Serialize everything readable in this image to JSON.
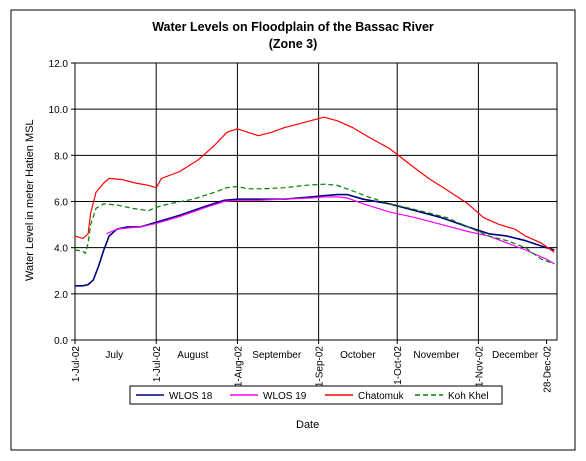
{
  "chart_data": {
    "type": "line",
    "title": "Water Levels on Floodplain of the Bassac River",
    "subtitle": "(Zone 3)",
    "ylabel": "Water Level in meter Hatien MSL",
    "xlabel": "Date",
    "ylim": [
      0,
      12
    ],
    "yticks": [
      "0.0",
      "2.0",
      "4.0",
      "6.0",
      "8.0",
      "10.0",
      "12.0"
    ],
    "grid": true,
    "legend_position": "bottom",
    "date_labels": [
      "1-Jul-02",
      "1-Jul-02",
      "1-Aug-02",
      "1-Sep-02",
      "1-Oct-02",
      "1-Nov-02",
      "28-Dec-02"
    ],
    "date_label_days": [
      0,
      31,
      62,
      93,
      123,
      154,
      180
    ],
    "month_labels": [
      "July",
      "August",
      "September",
      "October",
      "November",
      "December"
    ],
    "month_label_days": [
      15,
      45,
      77,
      108,
      138,
      168
    ],
    "series": [
      {
        "name": "WLOS 18",
        "color": "#000080",
        "dash": "",
        "points": [
          [
            0,
            2.35
          ],
          [
            3,
            2.35
          ],
          [
            5,
            2.4
          ],
          [
            7,
            2.6
          ],
          [
            9,
            3.2
          ],
          [
            11,
            3.9
          ],
          [
            13,
            4.5
          ],
          [
            16,
            4.8
          ],
          [
            20,
            4.9
          ],
          [
            25,
            4.9
          ],
          [
            31,
            5.1
          ],
          [
            40,
            5.4
          ],
          [
            50,
            5.8
          ],
          [
            57,
            6.05
          ],
          [
            62,
            6.1
          ],
          [
            70,
            6.1
          ],
          [
            80,
            6.1
          ],
          [
            90,
            6.2
          ],
          [
            95,
            6.25
          ],
          [
            100,
            6.3
          ],
          [
            104,
            6.3
          ],
          [
            110,
            6.1
          ],
          [
            120,
            5.9
          ],
          [
            130,
            5.6
          ],
          [
            140,
            5.3
          ],
          [
            150,
            4.9
          ],
          [
            158,
            4.6
          ],
          [
            165,
            4.5
          ],
          [
            172,
            4.3
          ],
          [
            180,
            4.0
          ],
          [
            183,
            3.9
          ]
        ]
      },
      {
        "name": "WLOS 19",
        "color": "#ff00ff",
        "dash": "",
        "points": [
          [
            12,
            4.6
          ],
          [
            16,
            4.8
          ],
          [
            20,
            4.85
          ],
          [
            25,
            4.9
          ],
          [
            31,
            5.05
          ],
          [
            40,
            5.35
          ],
          [
            50,
            5.75
          ],
          [
            57,
            6.0
          ],
          [
            62,
            6.05
          ],
          [
            70,
            6.05
          ],
          [
            80,
            6.1
          ],
          [
            90,
            6.15
          ],
          [
            95,
            6.2
          ],
          [
            100,
            6.2
          ],
          [
            104,
            6.15
          ],
          [
            110,
            5.9
          ],
          [
            120,
            5.55
          ],
          [
            130,
            5.3
          ],
          [
            140,
            5.0
          ],
          [
            150,
            4.7
          ],
          [
            158,
            4.5
          ],
          [
            165,
            4.2
          ],
          [
            172,
            3.9
          ],
          [
            180,
            3.5
          ],
          [
            183,
            3.3
          ]
        ]
      },
      {
        "name": "Chatomuk",
        "color": "#ff0000",
        "dash": "",
        "points": [
          [
            0,
            4.5
          ],
          [
            3,
            4.4
          ],
          [
            5,
            4.6
          ],
          [
            6,
            5.5
          ],
          [
            8,
            6.4
          ],
          [
            11,
            6.8
          ],
          [
            13,
            7.0
          ],
          [
            18,
            6.95
          ],
          [
            23,
            6.8
          ],
          [
            28,
            6.7
          ],
          [
            31,
            6.6
          ],
          [
            33,
            7.0
          ],
          [
            40,
            7.3
          ],
          [
            47,
            7.8
          ],
          [
            53,
            8.4
          ],
          [
            58,
            9.0
          ],
          [
            62,
            9.15
          ],
          [
            66,
            9.0
          ],
          [
            70,
            8.85
          ],
          [
            75,
            9.0
          ],
          [
            80,
            9.2
          ],
          [
            85,
            9.35
          ],
          [
            90,
            9.5
          ],
          [
            95,
            9.65
          ],
          [
            100,
            9.5
          ],
          [
            106,
            9.2
          ],
          [
            112,
            8.8
          ],
          [
            120,
            8.3
          ],
          [
            128,
            7.6
          ],
          [
            135,
            7.0
          ],
          [
            142,
            6.5
          ],
          [
            150,
            5.9
          ],
          [
            156,
            5.3
          ],
          [
            162,
            5.0
          ],
          [
            168,
            4.8
          ],
          [
            172,
            4.5
          ],
          [
            178,
            4.2
          ],
          [
            183,
            3.8
          ]
        ]
      },
      {
        "name": "Koh Khel",
        "color": "#008000",
        "dash": "5,3",
        "points": [
          [
            0,
            3.9
          ],
          [
            3,
            3.85
          ],
          [
            4,
            3.75
          ],
          [
            5,
            4.2
          ],
          [
            6,
            5.0
          ],
          [
            8,
            5.7
          ],
          [
            11,
            5.9
          ],
          [
            16,
            5.85
          ],
          [
            22,
            5.7
          ],
          [
            28,
            5.6
          ],
          [
            31,
            5.75
          ],
          [
            36,
            5.9
          ],
          [
            45,
            6.1
          ],
          [
            52,
            6.35
          ],
          [
            58,
            6.6
          ],
          [
            62,
            6.65
          ],
          [
            66,
            6.55
          ],
          [
            72,
            6.55
          ],
          [
            80,
            6.6
          ],
          [
            88,
            6.7
          ],
          [
            95,
            6.75
          ],
          [
            100,
            6.7
          ],
          [
            105,
            6.5
          ],
          [
            112,
            6.2
          ],
          [
            120,
            5.9
          ],
          [
            128,
            5.7
          ],
          [
            135,
            5.5
          ],
          [
            142,
            5.3
          ],
          [
            150,
            4.9
          ],
          [
            158,
            4.5
          ],
          [
            165,
            4.3
          ],
          [
            172,
            4.0
          ],
          [
            178,
            3.5
          ],
          [
            183,
            3.3
          ]
        ]
      }
    ]
  }
}
